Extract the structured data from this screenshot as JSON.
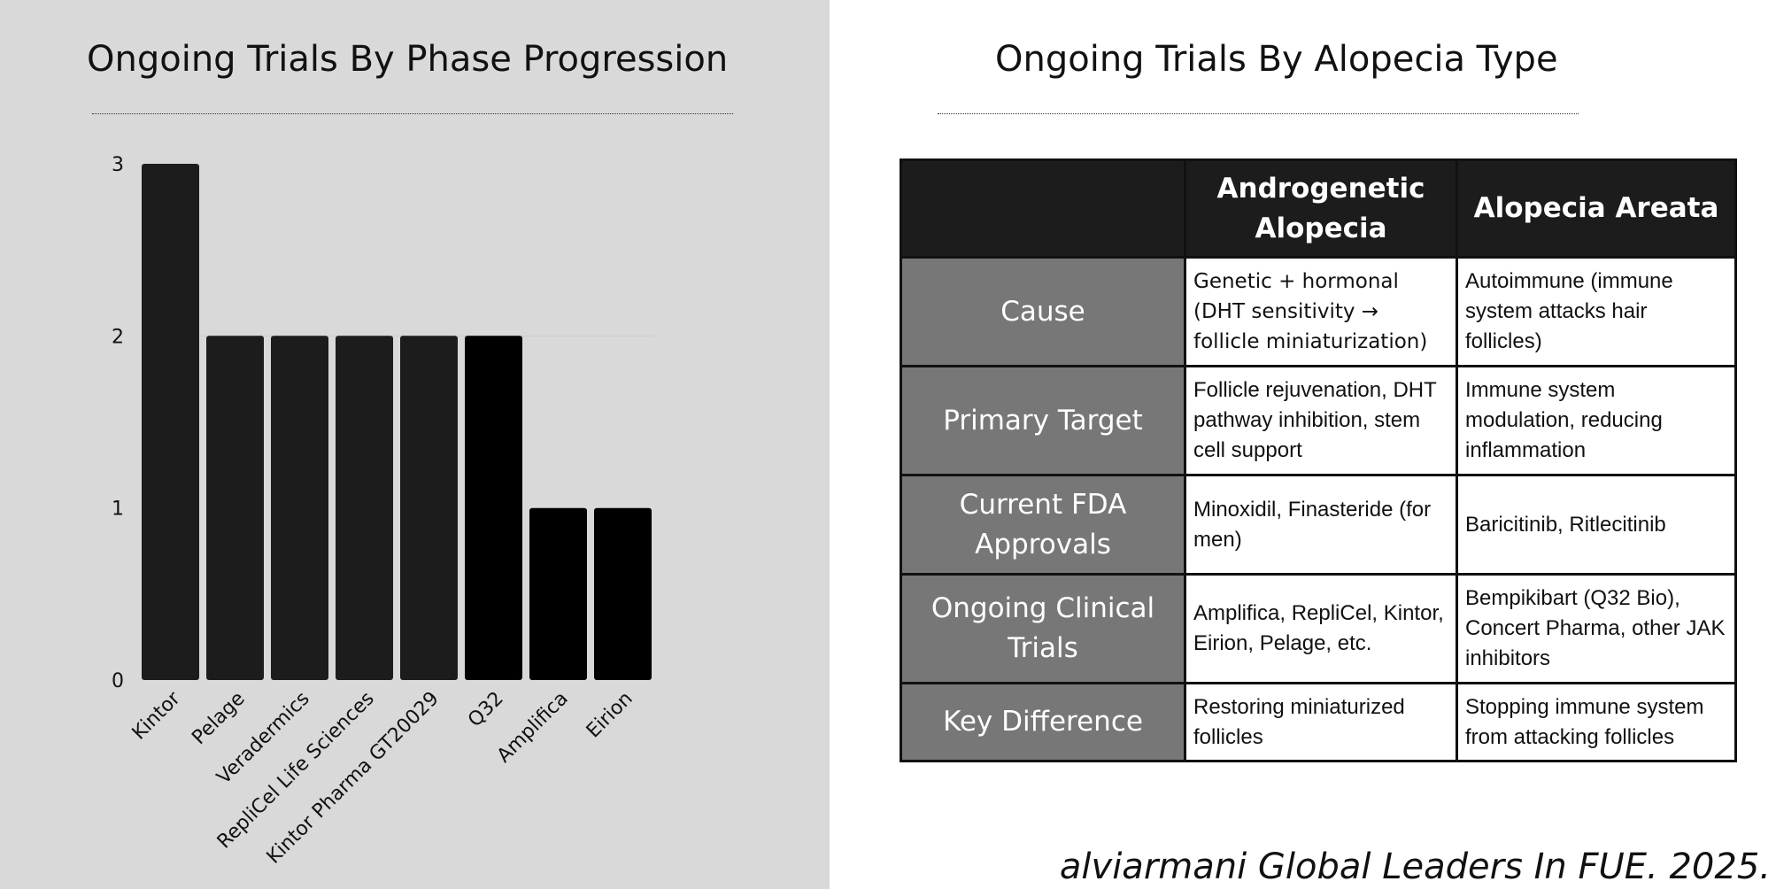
{
  "colors": {
    "left_background": "#d9d9d9",
    "bar": "#1c1c1c",
    "bar_highlight": "#000000",
    "table_header": "#1c1c1c",
    "table_row_header": "#777777"
  },
  "chart_data": {
    "type": "bar",
    "title": "Ongoing Trials By Phase Progression",
    "categories": [
      "Kintor",
      "Pelage",
      "Veradermics",
      "RepliCel Life Sciences",
      "Kintor Pharma GT20029",
      "Q32",
      "Amplifica",
      "Eirion"
    ],
    "values": [
      3,
      2,
      2,
      2,
      2,
      2,
      1,
      1
    ],
    "ylim": [
      0,
      3
    ],
    "yticks": [
      "0",
      "1",
      "2",
      "3"
    ],
    "xlabel": "",
    "ylabel": "",
    "grid": false,
    "legend": "none"
  },
  "table": {
    "title": "Ongoing Trials By Alopecia Type",
    "columns": [
      "",
      "Androgenetic Alopecia",
      "Alopecia Areata"
    ],
    "rows": [
      {
        "label": "Cause",
        "androgenetic": "Genetic + hormonal (DHT sensitivity → follicle miniaturization)",
        "areata": "Autoimmune (immune system attacks hair follicles)"
      },
      {
        "label": "Primary Target",
        "androgenetic": "Follicle rejuvenation, DHT pathway inhibition, stem cell support",
        "areata": "Immune system modulation, reducing inflammation"
      },
      {
        "label": "Current FDA Approvals",
        "androgenetic": "Minoxidil, Finasteride (for men)",
        "areata": "Baricitinib, Ritlecitinib"
      },
      {
        "label": "Ongoing Clinical Trials",
        "androgenetic": "Amplifica, RepliCel, Kintor, Eirion, Pelage, etc.",
        "areata": "Bempikibart (Q32 Bio), Concert Pharma, other JAK inhibitors"
      },
      {
        "label": "Key Difference",
        "androgenetic": "Restoring miniaturized follicles",
        "areata": "Stopping immune system from attacking follicles"
      }
    ]
  },
  "footer": "alviarmani Global Leaders In FUE. 2025."
}
